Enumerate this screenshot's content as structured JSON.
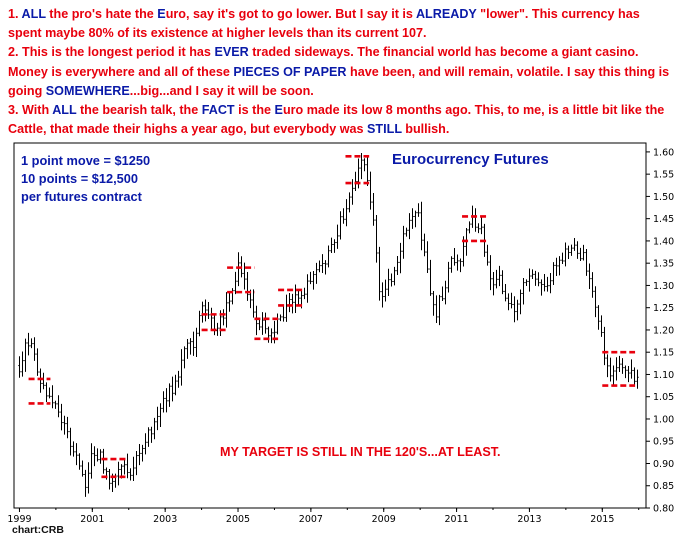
{
  "notes": [
    {
      "runs": [
        {
          "t": "1. "
        },
        {
          "t": "ALL",
          "hl": true
        },
        {
          "t": " the pro's hate the "
        },
        {
          "t": "E",
          "hl": true
        },
        {
          "t": "uro, say it's got to go lower. But I say it is "
        },
        {
          "t": "ALREADY",
          "hl": true
        },
        {
          "t": " \"lower\". This currency has spent maybe 80% of its existence at higher levels than its current 107."
        }
      ]
    },
    {
      "runs": [
        {
          "t": "2. This is the longest period it has "
        },
        {
          "t": "EVER",
          "hl": true
        },
        {
          "t": " traded sideways. The financial world has become a giant casino. Money is everywhere and all of these "
        },
        {
          "t": "PIECES OF PAPER",
          "hl": true
        },
        {
          "t": " have been, and will remain, volatile. I say this thing is going "
        },
        {
          "t": "SOMEWHERE",
          "hl": true
        },
        {
          "t": "...big...and I say it will be soon."
        }
      ]
    },
    {
      "runs": [
        {
          "t": "3. With "
        },
        {
          "t": "ALL",
          "hl": true
        },
        {
          "t": " the bearish talk, the "
        },
        {
          "t": "FACT",
          "hl": true
        },
        {
          "t": " is the "
        },
        {
          "t": "E",
          "hl": true
        },
        {
          "t": "uro made its low 8 months ago. This, to me, is a little bit like the Cattle, that made their highs a year ago, but everybody was "
        },
        {
          "t": "STILL",
          "hl": true
        },
        {
          "t": " bullish."
        }
      ]
    }
  ],
  "info_lines": [
    "1 point move = $1250",
    "10 points = $12,500",
    "per futures contract"
  ],
  "annotation": "MY TARGET IS STILL IN THE 120'S...AT LEAST.",
  "source": "chart:CRB",
  "colors": {
    "note_text": "#e8000d",
    "highlight": "#0a1aa8",
    "bars": "#000000",
    "levels": "#e8000d",
    "axis": "#000000"
  },
  "chart_data": {
    "type": "ohlc",
    "title": "Eurocurrency Futures",
    "y_ticks": [
      "0.80",
      "0.85",
      "0.90",
      "0.95",
      "1.00",
      "1.05",
      "1.10",
      "1.15",
      "1.20",
      "1.25",
      "1.30",
      "1.35",
      "1.40",
      "1.45",
      "1.50",
      "1.55",
      "1.60"
    ],
    "ylim": [
      0.8,
      1.62
    ],
    "x_ticks": [
      "1999",
      "2001",
      "2003",
      "2005",
      "2007",
      "2009",
      "2011",
      "2013",
      "2015"
    ],
    "xlim": [
      1998.85,
      2016.2
    ],
    "price_path": [
      [
        1999.0,
        1.12
      ],
      [
        1999.3,
        1.19
      ],
      [
        1999.5,
        1.1
      ],
      [
        1999.8,
        1.05
      ],
      [
        2000.0,
        1.03
      ],
      [
        2000.3,
        0.97
      ],
      [
        2000.5,
        0.93
      ],
      [
        2000.8,
        0.85
      ],
      [
        2001.0,
        0.92
      ],
      [
        2001.2,
        0.92
      ],
      [
        2001.5,
        0.85
      ],
      [
        2001.8,
        0.89
      ],
      [
        2002.0,
        0.88
      ],
      [
        2002.4,
        0.94
      ],
      [
        2002.7,
        0.99
      ],
      [
        2003.0,
        1.05
      ],
      [
        2003.3,
        1.08
      ],
      [
        2003.5,
        1.15
      ],
      [
        2003.8,
        1.17
      ],
      [
        2004.0,
        1.25
      ],
      [
        2004.3,
        1.21
      ],
      [
        2004.5,
        1.22
      ],
      [
        2004.8,
        1.28
      ],
      [
        2005.0,
        1.34
      ],
      [
        2005.2,
        1.3
      ],
      [
        2005.5,
        1.22
      ],
      [
        2005.8,
        1.2
      ],
      [
        2006.0,
        1.2
      ],
      [
        2006.3,
        1.24
      ],
      [
        2006.5,
        1.27
      ],
      [
        2006.8,
        1.28
      ],
      [
        2007.0,
        1.31
      ],
      [
        2007.3,
        1.35
      ],
      [
        2007.5,
        1.37
      ],
      [
        2007.8,
        1.44
      ],
      [
        2008.0,
        1.48
      ],
      [
        2008.3,
        1.57
      ],
      [
        2008.5,
        1.57
      ],
      [
        2008.7,
        1.45
      ],
      [
        2008.9,
        1.27
      ],
      [
        2009.1,
        1.3
      ],
      [
        2009.3,
        1.34
      ],
      [
        2009.6,
        1.42
      ],
      [
        2009.9,
        1.48
      ],
      [
        2010.1,
        1.38
      ],
      [
        2010.4,
        1.23
      ],
      [
        2010.6,
        1.28
      ],
      [
        2010.9,
        1.36
      ],
      [
        2011.1,
        1.36
      ],
      [
        2011.3,
        1.45
      ],
      [
        2011.5,
        1.44
      ],
      [
        2011.7,
        1.42
      ],
      [
        2011.9,
        1.31
      ],
      [
        2012.2,
        1.31
      ],
      [
        2012.4,
        1.27
      ],
      [
        2012.6,
        1.23
      ],
      [
        2012.8,
        1.29
      ],
      [
        2013.0,
        1.32
      ],
      [
        2013.3,
        1.29
      ],
      [
        2013.5,
        1.31
      ],
      [
        2013.8,
        1.36
      ],
      [
        2014.0,
        1.37
      ],
      [
        2014.3,
        1.38
      ],
      [
        2014.5,
        1.36
      ],
      [
        2014.8,
        1.27
      ],
      [
        2015.0,
        1.17
      ],
      [
        2015.2,
        1.09
      ],
      [
        2015.4,
        1.11
      ],
      [
        2015.6,
        1.12
      ],
      [
        2015.8,
        1.1
      ],
      [
        2016.0,
        1.09
      ]
    ],
    "level_marks": [
      {
        "x1": 1999.25,
        "x2": 1999.85,
        "y": 1.09
      },
      {
        "x1": 1999.25,
        "x2": 1999.85,
        "y": 1.035
      },
      {
        "x1": 2001.25,
        "x2": 2001.95,
        "y": 0.91
      },
      {
        "x1": 2001.25,
        "x2": 2001.95,
        "y": 0.87
      },
      {
        "x1": 2004.0,
        "x2": 2004.7,
        "y": 1.235
      },
      {
        "x1": 2004.0,
        "x2": 2004.7,
        "y": 1.2
      },
      {
        "x1": 2004.7,
        "x2": 2005.45,
        "y": 1.34
      },
      {
        "x1": 2004.7,
        "x2": 2005.45,
        "y": 1.285
      },
      {
        "x1": 2005.45,
        "x2": 2006.1,
        "y": 1.225
      },
      {
        "x1": 2005.45,
        "x2": 2006.1,
        "y": 1.18
      },
      {
        "x1": 2006.1,
        "x2": 2006.8,
        "y": 1.29
      },
      {
        "x1": 2006.1,
        "x2": 2006.8,
        "y": 1.255
      },
      {
        "x1": 2007.95,
        "x2": 2008.6,
        "y": 1.59
      },
      {
        "x1": 2007.95,
        "x2": 2008.6,
        "y": 1.53
      },
      {
        "x1": 2011.15,
        "x2": 2011.85,
        "y": 1.455
      },
      {
        "x1": 2011.15,
        "x2": 2011.85,
        "y": 1.4
      },
      {
        "x1": 2015.0,
        "x2": 2015.9,
        "y": 1.15
      },
      {
        "x1": 2015.0,
        "x2": 2015.9,
        "y": 1.075
      }
    ]
  }
}
